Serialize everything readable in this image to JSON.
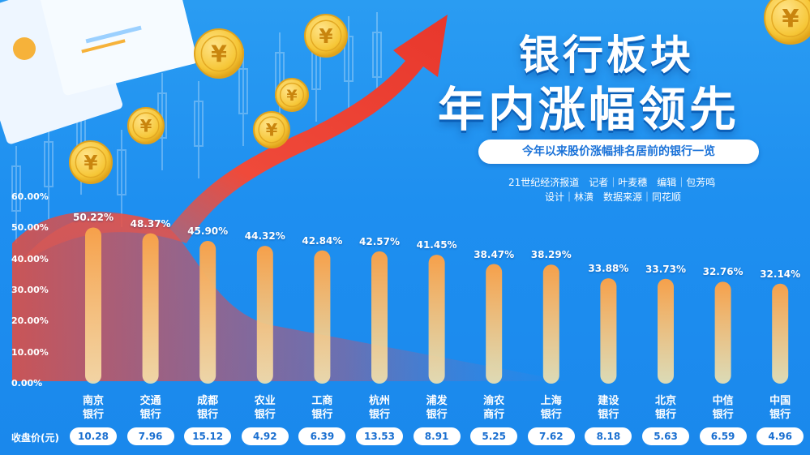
{
  "headline": {
    "line1": "银行板块",
    "line2": "年内涨幅领先",
    "subtitle": "今年以来股价涨幅排名居前的银行一览",
    "credit_line1": "21世纪经济报道　记者｜叶麦穗　编辑｜包芳鸣",
    "credit_line2": "设计｜林潢　数据来源｜同花顺"
  },
  "price_label": "收盘价(元)",
  "colors": {
    "background": "#1e8ff0",
    "bar_top": "#f6a04a",
    "bar_bottom": "#fde7a8",
    "arrow": "#ef4a3a",
    "coin": "#f6c636"
  },
  "chart_data": {
    "type": "bar",
    "categories": [
      [
        "南京",
        "银行"
      ],
      [
        "交通",
        "银行"
      ],
      [
        "成都",
        "银行"
      ],
      [
        "农业",
        "银行"
      ],
      [
        "工商",
        "银行"
      ],
      [
        "杭州",
        "银行"
      ],
      [
        "浦发",
        "银行"
      ],
      [
        "渝农",
        "商行"
      ],
      [
        "上海",
        "银行"
      ],
      [
        "建设",
        "银行"
      ],
      [
        "北京",
        "银行"
      ],
      [
        "中信",
        "银行"
      ],
      [
        "中国",
        "银行"
      ]
    ],
    "values": [
      50.22,
      48.37,
      45.9,
      44.32,
      42.84,
      42.57,
      41.45,
      38.47,
      38.29,
      33.88,
      33.73,
      32.76,
      32.14
    ],
    "value_labels": [
      "50.22%",
      "48.37%",
      "45.90%",
      "44.32%",
      "42.84%",
      "42.57%",
      "41.45%",
      "38.47%",
      "38.29%",
      "33.88%",
      "33.73%",
      "32.76%",
      "32.14%"
    ],
    "close_prices": [
      "10.28",
      "7.96",
      "15.12",
      "4.92",
      "6.39",
      "13.53",
      "8.91",
      "5.25",
      "7.62",
      "8.18",
      "5.63",
      "6.59",
      "4.96"
    ],
    "ylim": [
      0,
      60
    ],
    "yticks": [
      "0.00%",
      "10.00%",
      "20.00%",
      "30.00%",
      "40.00%",
      "50.00%",
      "60.00%"
    ],
    "xlabel": "",
    "ylabel": "",
    "grid": false
  }
}
